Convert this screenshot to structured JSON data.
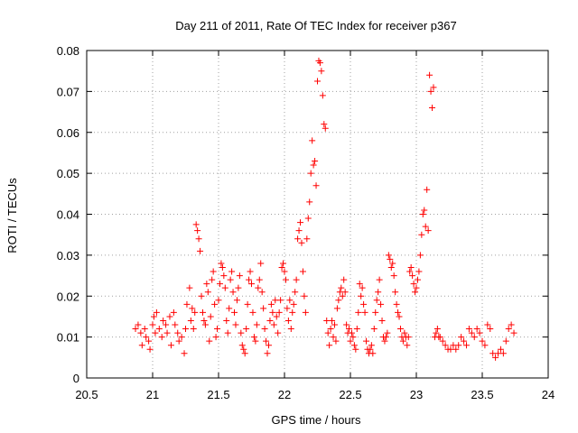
{
  "chart_data": {
    "type": "scatter",
    "title": "Day 211 of 2011, Rate Of TEC Index for receiver p367",
    "xlabel": "GPS time / hours",
    "ylabel": "ROTI / TECUs",
    "xlim": [
      20.5,
      24
    ],
    "ylim": [
      0,
      0.08
    ],
    "xticks": [
      20.5,
      21,
      21.5,
      22,
      22.5,
      23,
      23.5,
      24
    ],
    "xtick_labels": [
      "20.5",
      "21",
      "21.5",
      "22",
      "22.5",
      "23",
      "23.5",
      "24"
    ],
    "yticks": [
      0,
      0.01,
      0.02,
      0.03,
      0.04,
      0.05,
      0.06,
      0.07,
      0.08
    ],
    "ytick_labels": [
      "0",
      "0.01",
      "0.02",
      "0.03",
      "0.04",
      "0.05",
      "0.06",
      "0.07",
      "0.08"
    ],
    "grid": true,
    "marker": "+",
    "color": "#ff0000",
    "series": [
      {
        "name": "ROTI",
        "points": [
          [
            20.87,
            0.012
          ],
          [
            20.89,
            0.013
          ],
          [
            20.91,
            0.011
          ],
          [
            20.92,
            0.008
          ],
          [
            20.94,
            0.012
          ],
          [
            20.95,
            0.01
          ],
          [
            20.97,
            0.009
          ],
          [
            20.98,
            0.007
          ],
          [
            21.0,
            0.013
          ],
          [
            21.01,
            0.015
          ],
          [
            21.02,
            0.011
          ],
          [
            21.03,
            0.016
          ],
          [
            21.05,
            0.012
          ],
          [
            21.07,
            0.01
          ],
          [
            21.08,
            0.014
          ],
          [
            21.1,
            0.013
          ],
          [
            21.11,
            0.011
          ],
          [
            21.13,
            0.015
          ],
          [
            21.14,
            0.008
          ],
          [
            21.16,
            0.016
          ],
          [
            21.17,
            0.013
          ],
          [
            21.19,
            0.011
          ],
          [
            21.2,
            0.009
          ],
          [
            21.22,
            0.01
          ],
          [
            21.24,
            0.006
          ],
          [
            21.25,
            0.012
          ],
          [
            21.26,
            0.018
          ],
          [
            21.28,
            0.022
          ],
          [
            21.29,
            0.014
          ],
          [
            21.3,
            0.017
          ],
          [
            21.31,
            0.012
          ],
          [
            21.32,
            0.016
          ],
          [
            21.33,
            0.0375
          ],
          [
            21.34,
            0.036
          ],
          [
            21.35,
            0.034
          ],
          [
            21.36,
            0.031
          ],
          [
            21.37,
            0.02
          ],
          [
            21.38,
            0.016
          ],
          [
            21.39,
            0.014
          ],
          [
            21.4,
            0.013
          ],
          [
            21.41,
            0.023
          ],
          [
            21.42,
            0.021
          ],
          [
            21.43,
            0.009
          ],
          [
            21.44,
            0.015
          ],
          [
            21.45,
            0.024
          ],
          [
            21.46,
            0.026
          ],
          [
            21.47,
            0.018
          ],
          [
            21.48,
            0.01
          ],
          [
            21.49,
            0.012
          ],
          [
            21.5,
            0.019
          ],
          [
            21.51,
            0.023
          ],
          [
            21.52,
            0.028
          ],
          [
            21.53,
            0.027
          ],
          [
            21.54,
            0.025
          ],
          [
            21.55,
            0.022
          ],
          [
            21.56,
            0.014
          ],
          [
            21.57,
            0.011
          ],
          [
            21.58,
            0.017
          ],
          [
            21.59,
            0.024
          ],
          [
            21.6,
            0.026
          ],
          [
            21.61,
            0.021
          ],
          [
            21.62,
            0.016
          ],
          [
            21.63,
            0.013
          ],
          [
            21.64,
            0.019
          ],
          [
            21.65,
            0.022
          ],
          [
            21.66,
            0.025
          ],
          [
            21.67,
            0.011
          ],
          [
            21.68,
            0.008
          ],
          [
            21.69,
            0.007
          ],
          [
            21.7,
            0.006
          ],
          [
            21.71,
            0.012
          ],
          [
            21.72,
            0.018
          ],
          [
            21.73,
            0.024
          ],
          [
            21.74,
            0.026
          ],
          [
            21.75,
            0.023
          ],
          [
            21.76,
            0.016
          ],
          [
            21.77,
            0.01
          ],
          [
            21.78,
            0.009
          ],
          [
            21.79,
            0.013
          ],
          [
            21.8,
            0.022
          ],
          [
            21.81,
            0.024
          ],
          [
            21.82,
            0.028
          ],
          [
            21.83,
            0.021
          ],
          [
            21.84,
            0.017
          ],
          [
            21.85,
            0.012
          ],
          [
            21.86,
            0.009
          ],
          [
            21.87,
            0.006
          ],
          [
            21.88,
            0.008
          ],
          [
            21.89,
            0.014
          ],
          [
            21.9,
            0.018
          ],
          [
            21.91,
            0.016
          ],
          [
            21.92,
            0.013
          ],
          [
            21.93,
            0.019
          ],
          [
            21.94,
            0.015
          ],
          [
            21.95,
            0.011
          ],
          [
            21.96,
            0.016
          ],
          [
            21.97,
            0.019
          ],
          [
            21.98,
            0.027
          ],
          [
            21.99,
            0.028
          ],
          [
            22.0,
            0.026
          ],
          [
            22.01,
            0.024
          ],
          [
            22.02,
            0.017
          ],
          [
            22.03,
            0.014
          ],
          [
            22.04,
            0.019
          ],
          [
            22.05,
            0.012
          ],
          [
            22.06,
            0.016
          ],
          [
            22.07,
            0.018
          ],
          [
            22.08,
            0.021
          ],
          [
            22.09,
            0.024
          ],
          [
            22.1,
            0.034
          ],
          [
            22.11,
            0.036
          ],
          [
            22.12,
            0.038
          ],
          [
            22.13,
            0.033
          ],
          [
            22.14,
            0.026
          ],
          [
            22.15,
            0.02
          ],
          [
            22.16,
            0.016
          ],
          [
            22.17,
            0.034
          ],
          [
            22.18,
            0.039
          ],
          [
            22.19,
            0.043
          ],
          [
            22.2,
            0.05
          ],
          [
            22.21,
            0.058
          ],
          [
            22.22,
            0.052
          ],
          [
            22.23,
            0.053
          ],
          [
            22.24,
            0.047
          ],
          [
            22.25,
            0.0725
          ],
          [
            22.26,
            0.0775
          ],
          [
            22.27,
            0.077
          ],
          [
            22.28,
            0.075
          ],
          [
            22.29,
            0.069
          ],
          [
            22.3,
            0.062
          ],
          [
            22.31,
            0.061
          ],
          [
            22.32,
            0.014
          ],
          [
            22.33,
            0.011
          ],
          [
            22.34,
            0.008
          ],
          [
            22.35,
            0.012
          ],
          [
            22.36,
            0.014
          ],
          [
            22.37,
            0.01
          ],
          [
            22.38,
            0.013
          ],
          [
            22.39,
            0.009
          ],
          [
            22.4,
            0.017
          ],
          [
            22.41,
            0.019
          ],
          [
            22.42,
            0.021
          ],
          [
            22.43,
            0.022
          ],
          [
            22.44,
            0.02
          ],
          [
            22.45,
            0.024
          ],
          [
            22.46,
            0.021
          ],
          [
            22.47,
            0.013
          ],
          [
            22.48,
            0.011
          ],
          [
            22.49,
            0.012
          ],
          [
            22.5,
            0.009
          ],
          [
            22.51,
            0.011
          ],
          [
            22.52,
            0.01
          ],
          [
            22.53,
            0.008
          ],
          [
            22.54,
            0.007
          ],
          [
            22.55,
            0.012
          ],
          [
            22.56,
            0.016
          ],
          [
            22.57,
            0.023
          ],
          [
            22.58,
            0.02
          ],
          [
            22.59,
            0.022
          ],
          [
            22.6,
            0.018
          ],
          [
            22.61,
            0.016
          ],
          [
            22.62,
            0.009
          ],
          [
            22.63,
            0.007
          ],
          [
            22.64,
            0.006
          ],
          [
            22.65,
            0.007
          ],
          [
            22.66,
            0.008
          ],
          [
            22.67,
            0.006
          ],
          [
            22.68,
            0.012
          ],
          [
            22.69,
            0.016
          ],
          [
            22.7,
            0.019
          ],
          [
            22.71,
            0.021
          ],
          [
            22.72,
            0.024
          ],
          [
            22.73,
            0.018
          ],
          [
            22.74,
            0.014
          ],
          [
            22.75,
            0.01
          ],
          [
            22.76,
            0.009
          ],
          [
            22.77,
            0.01
          ],
          [
            22.78,
            0.011
          ],
          [
            22.79,
            0.03
          ],
          [
            22.8,
            0.029
          ],
          [
            22.81,
            0.027
          ],
          [
            22.82,
            0.028
          ],
          [
            22.83,
            0.025
          ],
          [
            22.84,
            0.021
          ],
          [
            22.85,
            0.018
          ],
          [
            22.86,
            0.016
          ],
          [
            22.87,
            0.015
          ],
          [
            22.88,
            0.012
          ],
          [
            22.89,
            0.01
          ],
          [
            22.9,
            0.009
          ],
          [
            22.91,
            0.011
          ],
          [
            22.92,
            0.01
          ],
          [
            22.93,
            0.008
          ],
          [
            22.94,
            0.01
          ],
          [
            22.95,
            0.026
          ],
          [
            22.96,
            0.027
          ],
          [
            22.97,
            0.025
          ],
          [
            22.98,
            0.023
          ],
          [
            22.99,
            0.021
          ],
          [
            23.0,
            0.022
          ],
          [
            23.01,
            0.024
          ],
          [
            23.02,
            0.026
          ],
          [
            23.03,
            0.03
          ],
          [
            23.04,
            0.035
          ],
          [
            23.05,
            0.04
          ],
          [
            23.06,
            0.041
          ],
          [
            23.07,
            0.037
          ],
          [
            23.08,
            0.046
          ],
          [
            23.09,
            0.036
          ],
          [
            23.1,
            0.074
          ],
          [
            23.11,
            0.07
          ],
          [
            23.12,
            0.066
          ],
          [
            23.13,
            0.071
          ],
          [
            23.14,
            0.01
          ],
          [
            23.15,
            0.011
          ],
          [
            23.16,
            0.012
          ],
          [
            23.17,
            0.01
          ],
          [
            23.18,
            0.01
          ],
          [
            23.2,
            0.009
          ],
          [
            23.22,
            0.008
          ],
          [
            23.24,
            0.007
          ],
          [
            23.26,
            0.007
          ],
          [
            23.28,
            0.008
          ],
          [
            23.3,
            0.007
          ],
          [
            23.32,
            0.008
          ],
          [
            23.34,
            0.01
          ],
          [
            23.36,
            0.009
          ],
          [
            23.38,
            0.008
          ],
          [
            23.4,
            0.012
          ],
          [
            23.42,
            0.011
          ],
          [
            23.44,
            0.01
          ],
          [
            23.46,
            0.012
          ],
          [
            23.48,
            0.011
          ],
          [
            23.5,
            0.009
          ],
          [
            23.52,
            0.008
          ],
          [
            23.54,
            0.013
          ],
          [
            23.56,
            0.012
          ],
          [
            23.58,
            0.006
          ],
          [
            23.6,
            0.005
          ],
          [
            23.62,
            0.006
          ],
          [
            23.64,
            0.007
          ],
          [
            23.66,
            0.006
          ],
          [
            23.68,
            0.009
          ],
          [
            23.7,
            0.012
          ],
          [
            23.72,
            0.013
          ],
          [
            23.74,
            0.011
          ]
        ]
      }
    ]
  }
}
